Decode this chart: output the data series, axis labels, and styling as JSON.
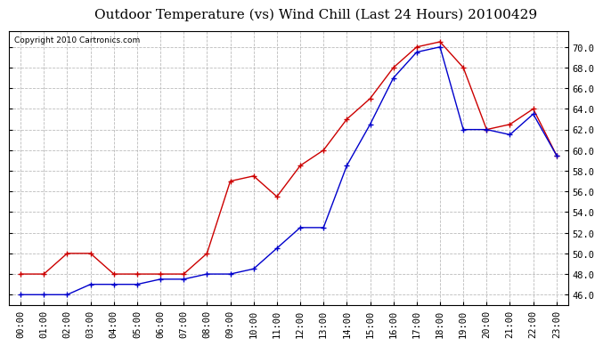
{
  "title": "Outdoor Temperature (vs) Wind Chill (Last 24 Hours) 20100429",
  "copyright": "Copyright 2010 Cartronics.com",
  "x_labels": [
    "00:00",
    "01:00",
    "02:00",
    "03:00",
    "04:00",
    "05:00",
    "06:00",
    "07:00",
    "08:00",
    "09:00",
    "10:00",
    "11:00",
    "12:00",
    "13:00",
    "14:00",
    "15:00",
    "16:00",
    "17:00",
    "18:00",
    "19:00",
    "20:00",
    "21:00",
    "22:00",
    "23:00"
  ],
  "outdoor_temp": [
    48.0,
    48.0,
    50.0,
    50.0,
    48.0,
    48.0,
    48.0,
    48.0,
    50.0,
    57.0,
    57.5,
    55.5,
    58.5,
    60.0,
    63.0,
    65.0,
    68.0,
    70.0,
    70.5,
    68.0,
    62.0,
    62.5,
    64.0,
    59.5
  ],
  "wind_chill": [
    46.0,
    46.0,
    46.0,
    47.0,
    47.0,
    47.0,
    47.5,
    47.5,
    48.0,
    48.0,
    48.5,
    50.5,
    52.5,
    52.5,
    58.5,
    62.5,
    67.0,
    69.5,
    70.0,
    62.0,
    62.0,
    61.5,
    63.5,
    59.5
  ],
  "temp_color": "#cc0000",
  "chill_color": "#0000cc",
  "bg_color": "#ffffff",
  "plot_bg_color": "#ffffff",
  "grid_color": "#bbbbbb",
  "ylim": [
    45.0,
    71.5
  ],
  "yticks": [
    46.0,
    48.0,
    50.0,
    52.0,
    54.0,
    56.0,
    58.0,
    60.0,
    62.0,
    64.0,
    66.0,
    68.0,
    70.0
  ],
  "title_fontsize": 11,
  "copyright_fontsize": 6.5,
  "tick_fontsize": 7.5
}
